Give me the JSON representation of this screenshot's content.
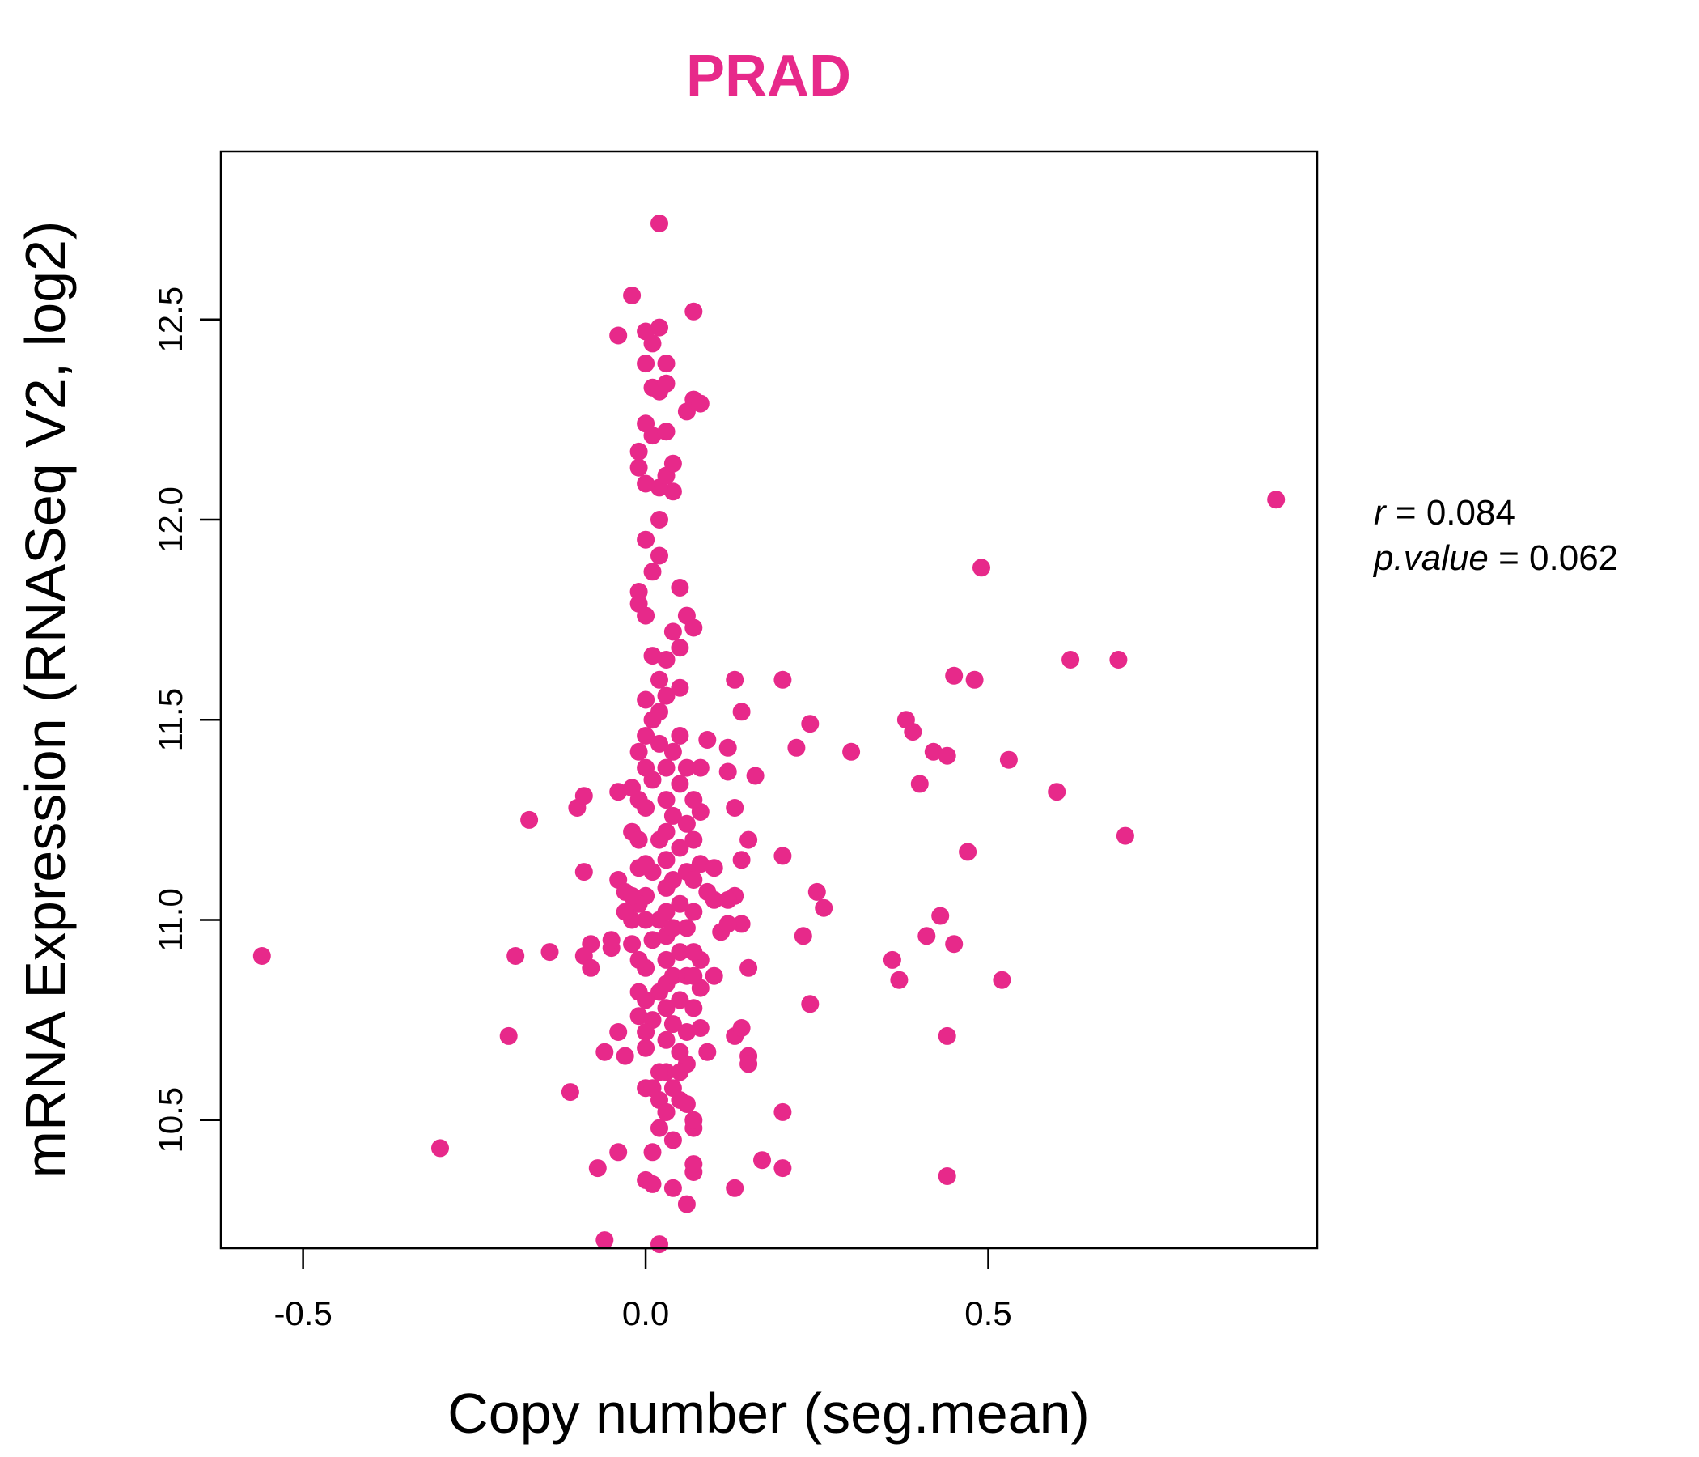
{
  "colors": {
    "accent": "#e7298a",
    "axis": "#000000"
  },
  "chart_data": {
    "type": "scatter",
    "title": "PRAD",
    "xlabel": "Copy number (seg.mean)",
    "ylabel": "mRNA Expression (RNASeq V2, log2)",
    "xlim": [
      -0.62,
      0.98
    ],
    "ylim": [
      10.18,
      12.92
    ],
    "xticks": [
      -0.5,
      0.0,
      0.5
    ],
    "xtick_labels": [
      "-0.5",
      "0.0",
      "0.5"
    ],
    "yticks": [
      10.5,
      11.0,
      11.5,
      12.0,
      12.5
    ],
    "ytick_labels": [
      "10.5",
      "11.0",
      "11.5",
      "12.0",
      "12.5"
    ],
    "grid": false,
    "legend": "none",
    "stats": {
      "r_name": "r",
      "r_value": "0.084",
      "p_name": "p.value",
      "p_value": "0.062"
    },
    "points": [
      [
        0.92,
        12.05
      ],
      [
        0.49,
        11.88
      ],
      [
        0.62,
        11.65
      ],
      [
        0.69,
        11.65
      ],
      [
        0.45,
        11.61
      ],
      [
        0.48,
        11.6
      ],
      [
        0.2,
        11.6
      ],
      [
        0.13,
        11.6
      ],
      [
        0.14,
        11.52
      ],
      [
        0.24,
        11.49
      ],
      [
        0.38,
        11.5
      ],
      [
        0.39,
        11.47
      ],
      [
        0.42,
        11.42
      ],
      [
        0.44,
        11.41
      ],
      [
        0.53,
        11.4
      ],
      [
        0.3,
        11.42
      ],
      [
        0.22,
        11.43
      ],
      [
        0.6,
        11.32
      ],
      [
        0.4,
        11.34
      ],
      [
        0.7,
        11.21
      ],
      [
        0.47,
        11.17
      ],
      [
        0.2,
        11.16
      ],
      [
        0.25,
        11.07
      ],
      [
        0.26,
        11.03
      ],
      [
        0.43,
        11.01
      ],
      [
        0.41,
        10.96
      ],
      [
        0.45,
        10.94
      ],
      [
        0.23,
        10.96
      ],
      [
        0.36,
        10.9
      ],
      [
        0.37,
        10.85
      ],
      [
        0.52,
        10.85
      ],
      [
        0.24,
        10.79
      ],
      [
        0.44,
        10.71
      ],
      [
        0.2,
        10.52
      ],
      [
        0.17,
        10.4
      ],
      [
        0.2,
        10.38
      ],
      [
        0.44,
        10.36
      ],
      [
        0.13,
        10.33
      ],
      [
        0.12,
        11.37
      ],
      [
        0.13,
        11.28
      ],
      [
        0.16,
        11.36
      ],
      [
        0.15,
        11.2
      ],
      [
        0.14,
        11.15
      ],
      [
        0.13,
        11.06
      ],
      [
        0.14,
        10.99
      ],
      [
        0.15,
        10.88
      ],
      [
        0.13,
        10.71
      ],
      [
        0.14,
        10.73
      ],
      [
        0.15,
        10.66
      ],
      [
        0.15,
        10.64
      ],
      [
        -0.56,
        10.91
      ],
      [
        -0.3,
        10.43
      ],
      [
        -0.2,
        10.71
      ],
      [
        -0.19,
        10.91
      ],
      [
        -0.17,
        11.25
      ],
      [
        -0.14,
        10.92
      ],
      [
        -0.11,
        10.57
      ],
      [
        -0.1,
        11.28
      ],
      [
        -0.09,
        11.31
      ],
      [
        -0.09,
        11.12
      ],
      [
        -0.08,
        10.94
      ],
      [
        -0.09,
        10.91
      ],
      [
        -0.08,
        10.88
      ],
      [
        -0.07,
        10.38
      ],
      [
        -0.06,
        10.67
      ],
      [
        -0.06,
        10.2
      ],
      [
        -0.05,
        10.93
      ],
      [
        -0.05,
        10.95
      ],
      [
        -0.04,
        10.72
      ],
      [
        -0.04,
        10.42
      ],
      [
        -0.03,
        10.66
      ],
      [
        -0.04,
        11.32
      ],
      [
        -0.04,
        11.1
      ],
      [
        -0.03,
        11.07
      ],
      [
        -0.02,
        11.22
      ],
      [
        -0.02,
        11.33
      ],
      [
        -0.01,
        11.13
      ],
      [
        -0.02,
        10.94
      ],
      [
        -0.01,
        10.76
      ],
      [
        0.0,
        10.58
      ],
      [
        0.0,
        10.35
      ],
      [
        0.01,
        10.34
      ],
      [
        0.01,
        10.42
      ],
      [
        0.02,
        10.19
      ],
      [
        0.02,
        10.48
      ],
      [
        0.03,
        10.52
      ],
      [
        0.03,
        10.62
      ],
      [
        0.04,
        10.45
      ],
      [
        0.04,
        10.33
      ],
      [
        0.06,
        10.29
      ],
      [
        0.07,
        10.37
      ],
      [
        0.07,
        10.39
      ],
      [
        0.07,
        10.48
      ],
      [
        0.07,
        10.5
      ],
      [
        0.05,
        10.55
      ],
      [
        0.05,
        10.67
      ],
      [
        0.06,
        10.64
      ],
      [
        0.07,
        10.78
      ],
      [
        0.08,
        10.73
      ],
      [
        0.08,
        10.83
      ],
      [
        0.08,
        10.9
      ],
      [
        0.09,
        10.67
      ],
      [
        0.1,
        10.86
      ],
      [
        0.11,
        10.97
      ],
      [
        0.12,
        10.99
      ],
      [
        0.1,
        11.05
      ],
      [
        0.12,
        11.05
      ],
      [
        0.09,
        11.07
      ],
      [
        0.08,
        11.14
      ],
      [
        0.1,
        11.13
      ],
      [
        0.08,
        11.27
      ],
      [
        0.07,
        11.3
      ],
      [
        0.08,
        11.38
      ],
      [
        0.09,
        11.45
      ],
      [
        0.12,
        11.43
      ],
      [
        0.06,
        11.38
      ],
      [
        0.05,
        11.46
      ],
      [
        0.05,
        11.58
      ],
      [
        0.05,
        11.68
      ],
      [
        0.04,
        11.72
      ],
      [
        0.03,
        11.65
      ],
      [
        0.06,
        11.76
      ],
      [
        0.07,
        11.73
      ],
      [
        0.05,
        11.83
      ],
      [
        -0.01,
        11.82
      ],
      [
        -0.01,
        11.79
      ],
      [
        0.0,
        11.76
      ],
      [
        0.01,
        11.87
      ],
      [
        0.02,
        11.91
      ],
      [
        0.0,
        11.95
      ],
      [
        0.02,
        12.0
      ],
      [
        0.04,
        12.07
      ],
      [
        0.02,
        12.08
      ],
      [
        0.03,
        12.11
      ],
      [
        0.04,
        12.14
      ],
      [
        -0.01,
        12.13
      ],
      [
        0.0,
        12.09
      ],
      [
        -0.01,
        12.17
      ],
      [
        0.01,
        12.21
      ],
      [
        0.03,
        12.22
      ],
      [
        0.0,
        12.24
      ],
      [
        0.01,
        12.33
      ],
      [
        0.02,
        12.32
      ],
      [
        0.03,
        12.34
      ],
      [
        0.06,
        12.27
      ],
      [
        0.07,
        12.3
      ],
      [
        0.08,
        12.29
      ],
      [
        0.03,
        12.39
      ],
      [
        0.0,
        12.39
      ],
      [
        0.01,
        12.44
      ],
      [
        0.0,
        12.47
      ],
      [
        0.02,
        12.48
      ],
      [
        -0.04,
        12.46
      ],
      [
        -0.02,
        12.56
      ],
      [
        0.07,
        12.52
      ],
      [
        0.02,
        12.74
      ],
      [
        0.0,
        11.55
      ],
      [
        0.01,
        11.5
      ],
      [
        0.02,
        11.44
      ],
      [
        0.01,
        11.35
      ],
      [
        0.0,
        11.28
      ],
      [
        0.02,
        11.2
      ],
      [
        0.01,
        11.12
      ],
      [
        0.0,
        11.06
      ],
      [
        0.02,
        11.0
      ],
      [
        0.01,
        10.95
      ],
      [
        0.0,
        10.88
      ],
      [
        0.02,
        10.82
      ],
      [
        0.01,
        10.75
      ],
      [
        0.0,
        10.68
      ],
      [
        0.02,
        10.62
      ],
      [
        0.03,
        11.38
      ],
      [
        0.03,
        11.3
      ],
      [
        0.03,
        11.22
      ],
      [
        0.03,
        11.15
      ],
      [
        0.03,
        11.08
      ],
      [
        0.03,
        11.02
      ],
      [
        0.03,
        10.96
      ],
      [
        0.03,
        10.9
      ],
      [
        0.03,
        10.84
      ],
      [
        0.03,
        10.78
      ],
      [
        0.03,
        10.7
      ],
      [
        0.04,
        11.42
      ],
      [
        0.04,
        11.26
      ],
      [
        0.04,
        11.1
      ],
      [
        0.04,
        10.98
      ],
      [
        0.04,
        10.86
      ],
      [
        0.04,
        10.74
      ],
      [
        0.05,
        11.34
      ],
      [
        0.05,
        11.18
      ],
      [
        0.05,
        11.04
      ],
      [
        0.05,
        10.92
      ],
      [
        0.05,
        10.8
      ],
      [
        0.06,
        11.24
      ],
      [
        0.06,
        11.12
      ],
      [
        0.06,
        10.98
      ],
      [
        0.06,
        10.86
      ],
      [
        0.06,
        10.72
      ],
      [
        -0.01,
        11.42
      ],
      [
        -0.01,
        11.3
      ],
      [
        -0.01,
        11.2
      ],
      [
        -0.01,
        11.04
      ],
      [
        -0.01,
        10.9
      ],
      [
        -0.01,
        10.82
      ],
      [
        0.0,
        11.46
      ],
      [
        0.0,
        11.38
      ],
      [
        0.0,
        11.14
      ],
      [
        0.0,
        11.0
      ],
      [
        0.0,
        10.8
      ],
      [
        0.0,
        10.72
      ],
      [
        0.02,
        11.6
      ],
      [
        0.01,
        11.66
      ],
      [
        0.03,
        11.56
      ],
      [
        0.02,
        11.52
      ],
      [
        -0.02,
        11.0
      ],
      [
        -0.02,
        11.06
      ],
      [
        -0.03,
        11.02
      ],
      [
        0.07,
        11.02
      ],
      [
        0.07,
        11.1
      ],
      [
        0.07,
        11.2
      ],
      [
        0.07,
        10.92
      ],
      [
        0.07,
        10.86
      ],
      [
        0.01,
        10.58
      ],
      [
        0.02,
        10.55
      ],
      [
        0.03,
        10.52
      ],
      [
        0.04,
        10.58
      ],
      [
        0.05,
        10.62
      ],
      [
        0.06,
        10.54
      ]
    ]
  }
}
